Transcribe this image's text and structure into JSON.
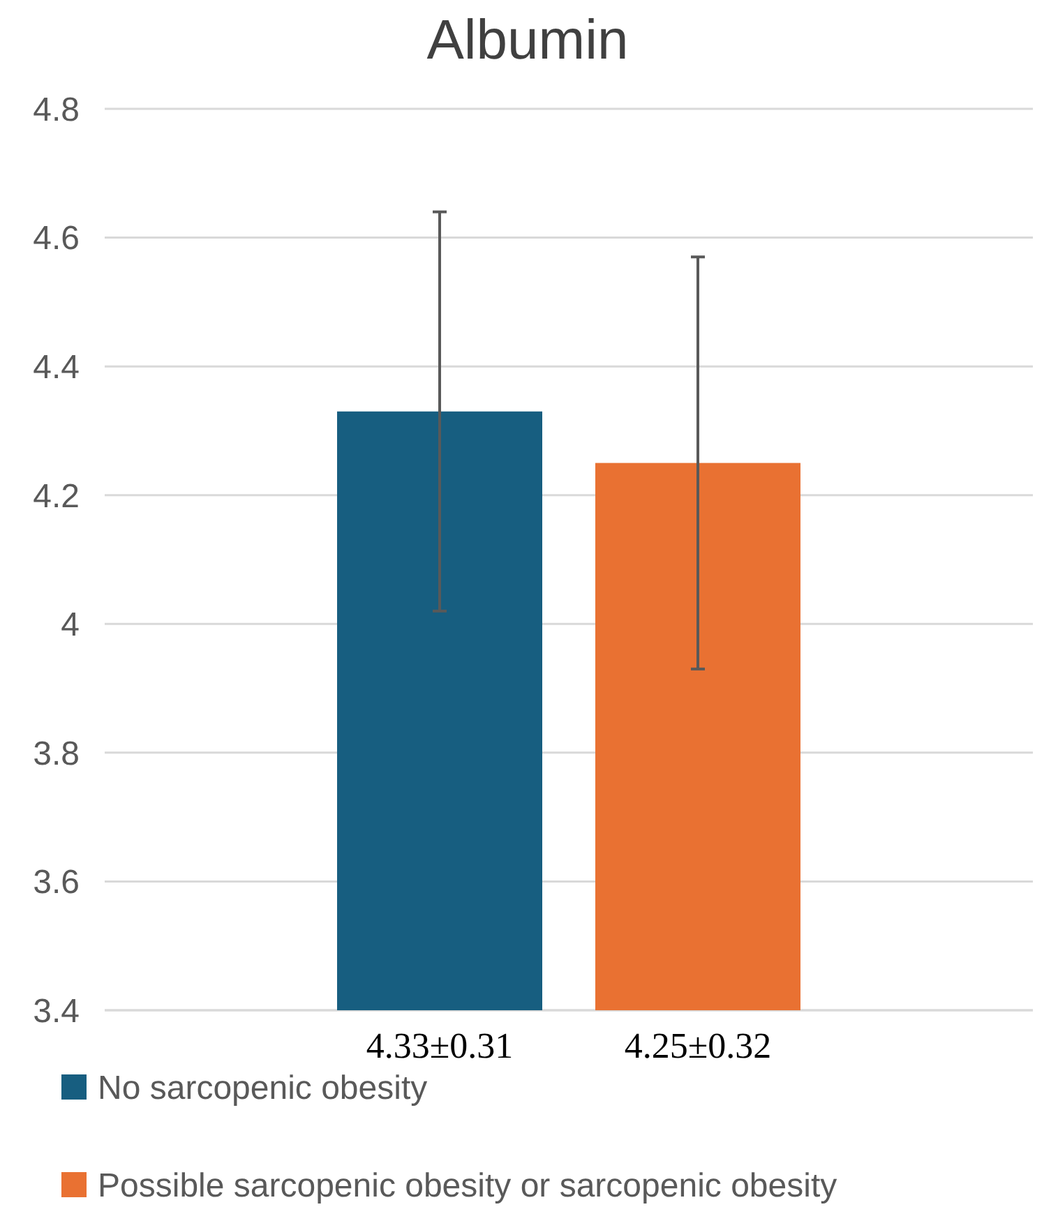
{
  "chart_data": {
    "type": "bar",
    "title": "Albumin",
    "categories": [
      null
    ],
    "series": [
      {
        "name": "No sarcopenic obesity",
        "color": "#175e80",
        "values": [
          4.33
        ],
        "errors": [
          0.31
        ],
        "value_labels": [
          "4.33±0.31"
        ]
      },
      {
        "name": "Possible sarcopenic obesity or sarcopenic obesity",
        "color": "#e97132",
        "values": [
          4.25
        ],
        "errors": [
          0.32
        ],
        "value_labels": [
          "4.25±0.32"
        ]
      }
    ],
    "ylim": [
      3.4,
      4.8
    ],
    "yticks": [
      3.4,
      3.6,
      3.8,
      4,
      4.2,
      4.4,
      4.6,
      4.8
    ],
    "grid": "y",
    "legend": "bottom"
  }
}
